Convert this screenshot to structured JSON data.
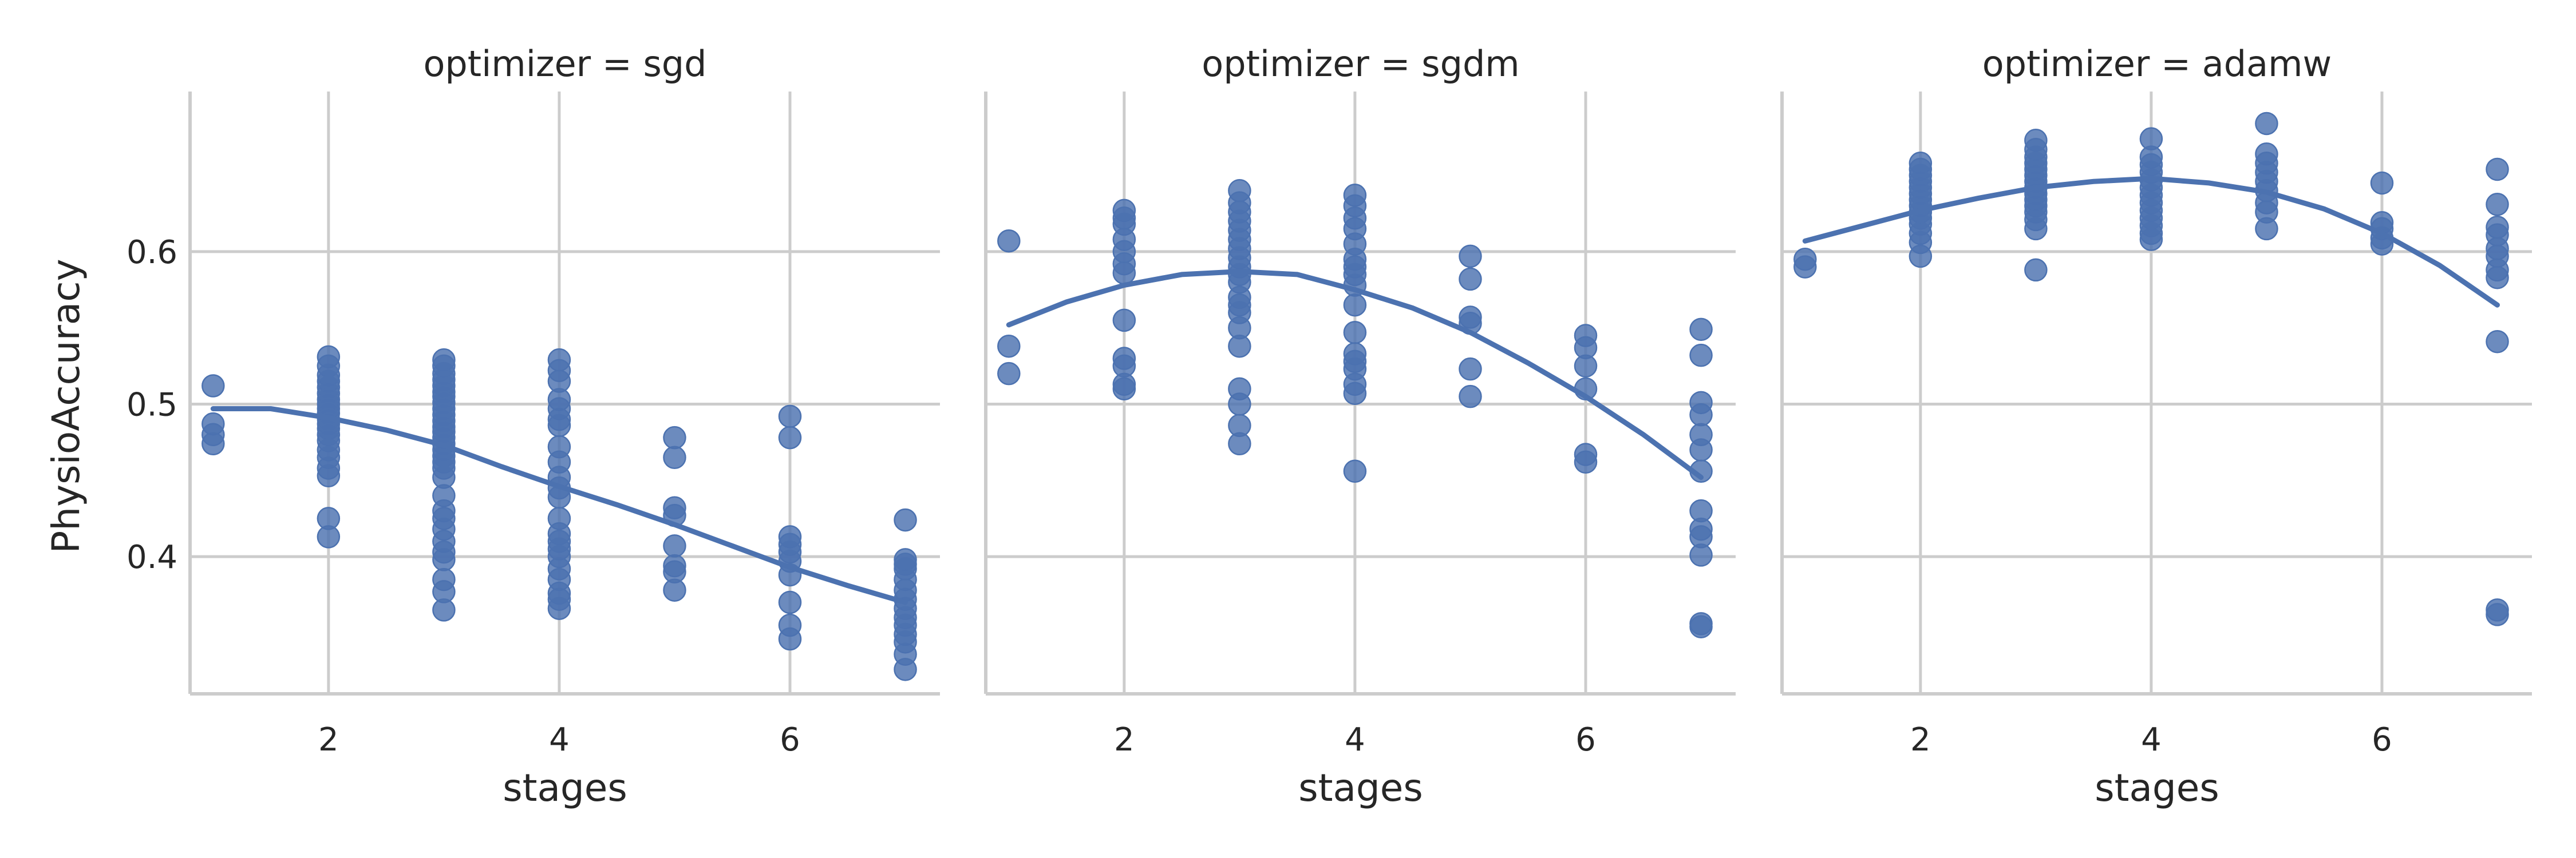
{
  "chart_data": {
    "type": "scatter",
    "subtype": "facet-grid-regression",
    "xlabel": "stages",
    "ylabel": "PhysioAccuracy",
    "xlim": [
      0.8,
      7.3
    ],
    "ylim": [
      0.31,
      0.705
    ],
    "xticks": [
      2,
      4,
      6
    ],
    "yticks": [
      0.4,
      0.5,
      0.6
    ],
    "grid": true,
    "point_color": "#4c72b0",
    "line_color": "#4c72b0",
    "panels": [
      {
        "title": "optimizer = sgd",
        "points": [
          [
            1,
            0.512
          ],
          [
            1,
            0.487
          ],
          [
            1,
            0.48
          ],
          [
            1,
            0.474
          ],
          [
            2,
            0.531
          ],
          [
            2,
            0.525
          ],
          [
            2,
            0.519
          ],
          [
            2,
            0.515
          ],
          [
            2,
            0.511
          ],
          [
            2,
            0.507
          ],
          [
            2,
            0.503
          ],
          [
            2,
            0.5
          ],
          [
            2,
            0.497
          ],
          [
            2,
            0.494
          ],
          [
            2,
            0.49
          ],
          [
            2,
            0.487
          ],
          [
            2,
            0.484
          ],
          [
            2,
            0.48
          ],
          [
            2,
            0.476
          ],
          [
            2,
            0.47
          ],
          [
            2,
            0.465
          ],
          [
            2,
            0.458
          ],
          [
            2,
            0.453
          ],
          [
            2,
            0.425
          ],
          [
            2,
            0.413
          ],
          [
            3,
            0.529
          ],
          [
            3,
            0.525
          ],
          [
            3,
            0.52
          ],
          [
            3,
            0.516
          ],
          [
            3,
            0.512
          ],
          [
            3,
            0.508
          ],
          [
            3,
            0.505
          ],
          [
            3,
            0.501
          ],
          [
            3,
            0.497
          ],
          [
            3,
            0.493
          ],
          [
            3,
            0.489
          ],
          [
            3,
            0.485
          ],
          [
            3,
            0.482
          ],
          [
            3,
            0.478
          ],
          [
            3,
            0.474
          ],
          [
            3,
            0.47
          ],
          [
            3,
            0.466
          ],
          [
            3,
            0.462
          ],
          [
            3,
            0.458
          ],
          [
            3,
            0.452
          ],
          [
            3,
            0.44
          ],
          [
            3,
            0.43
          ],
          [
            3,
            0.425
          ],
          [
            3,
            0.418
          ],
          [
            3,
            0.41
          ],
          [
            3,
            0.403
          ],
          [
            3,
            0.398
          ],
          [
            3,
            0.385
          ],
          [
            3,
            0.377
          ],
          [
            3,
            0.365
          ],
          [
            4,
            0.529
          ],
          [
            4,
            0.522
          ],
          [
            4,
            0.515
          ],
          [
            4,
            0.503
          ],
          [
            4,
            0.497
          ],
          [
            4,
            0.49
          ],
          [
            4,
            0.486
          ],
          [
            4,
            0.472
          ],
          [
            4,
            0.462
          ],
          [
            4,
            0.452
          ],
          [
            4,
            0.445
          ],
          [
            4,
            0.439
          ],
          [
            4,
            0.425
          ],
          [
            4,
            0.415
          ],
          [
            4,
            0.41
          ],
          [
            4,
            0.405
          ],
          [
            4,
            0.4
          ],
          [
            4,
            0.392
          ],
          [
            4,
            0.385
          ],
          [
            4,
            0.376
          ],
          [
            4,
            0.372
          ],
          [
            4,
            0.366
          ],
          [
            5,
            0.478
          ],
          [
            5,
            0.465
          ],
          [
            5,
            0.432
          ],
          [
            5,
            0.427
          ],
          [
            5,
            0.407
          ],
          [
            5,
            0.394
          ],
          [
            5,
            0.39
          ],
          [
            5,
            0.378
          ],
          [
            6,
            0.492
          ],
          [
            6,
            0.478
          ],
          [
            6,
            0.413
          ],
          [
            6,
            0.408
          ],
          [
            6,
            0.403
          ],
          [
            6,
            0.397
          ],
          [
            6,
            0.388
          ],
          [
            6,
            0.37
          ],
          [
            6,
            0.355
          ],
          [
            6,
            0.346
          ],
          [
            7,
            0.424
          ],
          [
            7,
            0.398
          ],
          [
            7,
            0.395
          ],
          [
            7,
            0.392
          ],
          [
            7,
            0.385
          ],
          [
            7,
            0.378
          ],
          [
            7,
            0.372
          ],
          [
            7,
            0.366
          ],
          [
            7,
            0.36
          ],
          [
            7,
            0.355
          ],
          [
            7,
            0.349
          ],
          [
            7,
            0.344
          ],
          [
            7,
            0.336
          ],
          [
            7,
            0.326
          ]
        ],
        "fit": [
          [
            1,
            0.497
          ],
          [
            1.5,
            0.497
          ],
          [
            2,
            0.491
          ],
          [
            2.5,
            0.483
          ],
          [
            3,
            0.473
          ],
          [
            3.5,
            0.459
          ],
          [
            4,
            0.446
          ],
          [
            4.5,
            0.434
          ],
          [
            5,
            0.421
          ],
          [
            5.5,
            0.407
          ],
          [
            6,
            0.393
          ],
          [
            6.5,
            0.381
          ],
          [
            7,
            0.37
          ]
        ]
      },
      {
        "title": "optimizer = sgdm",
        "points": [
          [
            1,
            0.607
          ],
          [
            1,
            0.538
          ],
          [
            1,
            0.52
          ],
          [
            2,
            0.627
          ],
          [
            2,
            0.622
          ],
          [
            2,
            0.618
          ],
          [
            2,
            0.608
          ],
          [
            2,
            0.6
          ],
          [
            2,
            0.592
          ],
          [
            2,
            0.586
          ],
          [
            2,
            0.555
          ],
          [
            2,
            0.53
          ],
          [
            2,
            0.525
          ],
          [
            2,
            0.513
          ],
          [
            2,
            0.51
          ],
          [
            3,
            0.64
          ],
          [
            3,
            0.632
          ],
          [
            3,
            0.626
          ],
          [
            3,
            0.62
          ],
          [
            3,
            0.614
          ],
          [
            3,
            0.608
          ],
          [
            3,
            0.602
          ],
          [
            3,
            0.596
          ],
          [
            3,
            0.59
          ],
          [
            3,
            0.585
          ],
          [
            3,
            0.58
          ],
          [
            3,
            0.57
          ],
          [
            3,
            0.565
          ],
          [
            3,
            0.56
          ],
          [
            3,
            0.55
          ],
          [
            3,
            0.538
          ],
          [
            3,
            0.51
          ],
          [
            3,
            0.5
          ],
          [
            3,
            0.486
          ],
          [
            3,
            0.474
          ],
          [
            4,
            0.637
          ],
          [
            4,
            0.63
          ],
          [
            4,
            0.622
          ],
          [
            4,
            0.615
          ],
          [
            4,
            0.605
          ],
          [
            4,
            0.595
          ],
          [
            4,
            0.59
          ],
          [
            4,
            0.585
          ],
          [
            4,
            0.578
          ],
          [
            4,
            0.565
          ],
          [
            4,
            0.547
          ],
          [
            4,
            0.533
          ],
          [
            4,
            0.528
          ],
          [
            4,
            0.523
          ],
          [
            4,
            0.513
          ],
          [
            4,
            0.507
          ],
          [
            4,
            0.456
          ],
          [
            5,
            0.597
          ],
          [
            5,
            0.582
          ],
          [
            5,
            0.557
          ],
          [
            5,
            0.553
          ],
          [
            5,
            0.523
          ],
          [
            5,
            0.505
          ],
          [
            6,
            0.545
          ],
          [
            6,
            0.537
          ],
          [
            6,
            0.525
          ],
          [
            6,
            0.51
          ],
          [
            6,
            0.467
          ],
          [
            6,
            0.462
          ],
          [
            7,
            0.549
          ],
          [
            7,
            0.532
          ],
          [
            7,
            0.501
          ],
          [
            7,
            0.493
          ],
          [
            7,
            0.48
          ],
          [
            7,
            0.47
          ],
          [
            7,
            0.456
          ],
          [
            7,
            0.43
          ],
          [
            7,
            0.418
          ],
          [
            7,
            0.413
          ],
          [
            7,
            0.401
          ],
          [
            7,
            0.356
          ],
          [
            7,
            0.354
          ]
        ],
        "fit": [
          [
            1,
            0.552
          ],
          [
            1.5,
            0.567
          ],
          [
            2,
            0.578
          ],
          [
            2.5,
            0.585
          ],
          [
            3,
            0.587
          ],
          [
            3.5,
            0.585
          ],
          [
            4,
            0.575
          ],
          [
            4.5,
            0.563
          ],
          [
            5,
            0.547
          ],
          [
            5.5,
            0.527
          ],
          [
            6,
            0.505
          ],
          [
            6.5,
            0.48
          ],
          [
            7,
            0.452
          ]
        ]
      },
      {
        "title": "optimizer = adamw",
        "points": [
          [
            1,
            0.595
          ],
          [
            1,
            0.59
          ],
          [
            2,
            0.658
          ],
          [
            2,
            0.654
          ],
          [
            2,
            0.65
          ],
          [
            2,
            0.646
          ],
          [
            2,
            0.642
          ],
          [
            2,
            0.638
          ],
          [
            2,
            0.634
          ],
          [
            2,
            0.63
          ],
          [
            2,
            0.626
          ],
          [
            2,
            0.622
          ],
          [
            2,
            0.618
          ],
          [
            2,
            0.612
          ],
          [
            2,
            0.606
          ],
          [
            2,
            0.597
          ],
          [
            3,
            0.673
          ],
          [
            3,
            0.667
          ],
          [
            3,
            0.662
          ],
          [
            3,
            0.658
          ],
          [
            3,
            0.654
          ],
          [
            3,
            0.65
          ],
          [
            3,
            0.646
          ],
          [
            3,
            0.642
          ],
          [
            3,
            0.638
          ],
          [
            3,
            0.634
          ],
          [
            3,
            0.63
          ],
          [
            3,
            0.626
          ],
          [
            3,
            0.621
          ],
          [
            3,
            0.615
          ],
          [
            3,
            0.588
          ],
          [
            4,
            0.674
          ],
          [
            4,
            0.662
          ],
          [
            4,
            0.657
          ],
          [
            4,
            0.652
          ],
          [
            4,
            0.647
          ],
          [
            4,
            0.642
          ],
          [
            4,
            0.637
          ],
          [
            4,
            0.632
          ],
          [
            4,
            0.627
          ],
          [
            4,
            0.622
          ],
          [
            4,
            0.617
          ],
          [
            4,
            0.612
          ],
          [
            4,
            0.608
          ],
          [
            5,
            0.684
          ],
          [
            5,
            0.664
          ],
          [
            5,
            0.658
          ],
          [
            5,
            0.652
          ],
          [
            5,
            0.646
          ],
          [
            5,
            0.64
          ],
          [
            5,
            0.632
          ],
          [
            5,
            0.626
          ],
          [
            5,
            0.615
          ],
          [
            6,
            0.645
          ],
          [
            6,
            0.619
          ],
          [
            6,
            0.615
          ],
          [
            6,
            0.609
          ],
          [
            6,
            0.605
          ],
          [
            7,
            0.654
          ],
          [
            7,
            0.631
          ],
          [
            7,
            0.616
          ],
          [
            7,
            0.611
          ],
          [
            7,
            0.602
          ],
          [
            7,
            0.597
          ],
          [
            7,
            0.588
          ],
          [
            7,
            0.583
          ],
          [
            7,
            0.541
          ],
          [
            7,
            0.365
          ],
          [
            7,
            0.362
          ]
        ],
        "fit": [
          [
            1,
            0.607
          ],
          [
            1.5,
            0.617
          ],
          [
            2,
            0.627
          ],
          [
            2.5,
            0.635
          ],
          [
            3,
            0.642
          ],
          [
            3.5,
            0.646
          ],
          [
            4,
            0.648
          ],
          [
            4.5,
            0.645
          ],
          [
            5,
            0.639
          ],
          [
            5.5,
            0.628
          ],
          [
            6,
            0.612
          ],
          [
            6.5,
            0.591
          ],
          [
            7,
            0.565
          ]
        ]
      }
    ]
  }
}
